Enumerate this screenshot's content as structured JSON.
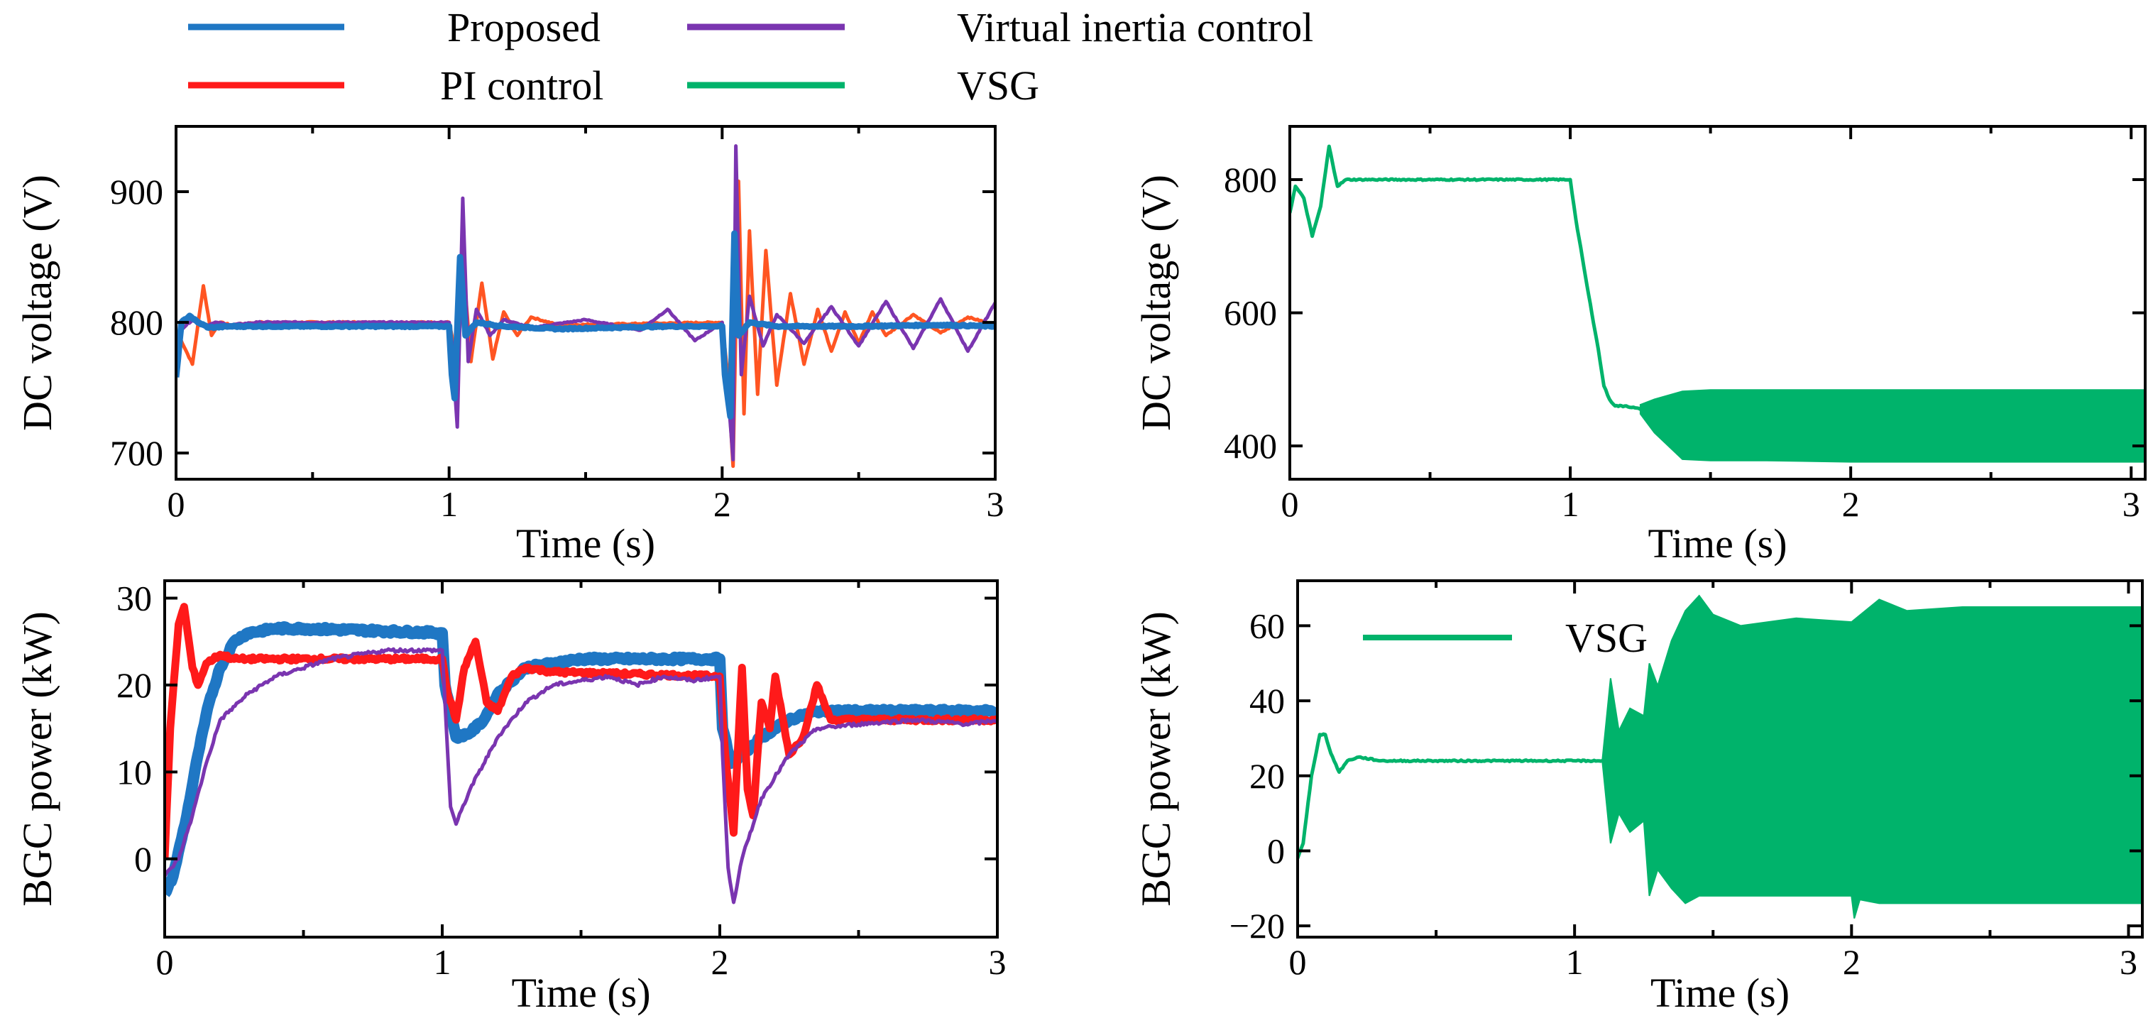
{
  "legend": {
    "entries": [
      {
        "label": "Proposed",
        "color": "#1f77c4"
      },
      {
        "label": "PI control",
        "color": "#ff1a1a"
      },
      {
        "label": "Virtual inertia control",
        "color": "#7a35b0"
      },
      {
        "label": "VSG",
        "color": "#00b36b"
      }
    ]
  },
  "chart_data": [
    {
      "id": "dc-voltage-compare",
      "type": "line",
      "title": "",
      "xlabel": "Time (s)",
      "ylabel": "DC voltage (V)",
      "xlim": [
        0,
        3
      ],
      "ylim": [
        680,
        950
      ],
      "xticks": [
        "0",
        "1",
        "2",
        "3"
      ],
      "xtick_values": [
        0,
        1,
        2,
        3
      ],
      "yticks": [
        "700",
        "800",
        "900"
      ],
      "ytick_values": [
        700,
        800,
        900
      ],
      "series": [
        {
          "name": "PI control",
          "color": "#ff5522",
          "x": [
            0,
            0.01,
            0.06,
            0.1,
            0.13,
            0.16,
            0.2,
            0.3,
            1.0,
            1.01,
            1.03,
            1.05,
            1.08,
            1.12,
            1.16,
            1.2,
            1.25,
            1.3,
            1.4,
            2.0,
            2.02,
            2.04,
            2.06,
            2.08,
            2.1,
            2.13,
            2.16,
            2.2,
            2.25,
            2.3,
            2.35,
            2.4,
            2.45,
            2.5,
            2.55,
            2.6,
            2.7,
            2.8,
            2.9,
            3.0
          ],
          "y": [
            760,
            790,
            768,
            828,
            790,
            800,
            798,
            800,
            800,
            790,
            755,
            848,
            770,
            830,
            772,
            808,
            790,
            804,
            798,
            800,
            760,
            690,
            908,
            730,
            870,
            745,
            855,
            752,
            822,
            768,
            810,
            778,
            808,
            784,
            808,
            790,
            806,
            792,
            804,
            798
          ]
        },
        {
          "name": "Virtual inertia control",
          "color": "#7a35b0",
          "x": [
            0,
            0.02,
            0.06,
            0.1,
            0.15,
            0.2,
            0.3,
            1.0,
            1.01,
            1.03,
            1.05,
            1.07,
            1.1,
            1.15,
            1.2,
            1.3,
            1.5,
            1.7,
            1.8,
            1.9,
            2.0,
            2.02,
            2.04,
            2.05,
            2.07,
            2.1,
            2.15,
            2.2,
            2.3,
            2.4,
            2.5,
            2.6,
            2.7,
            2.8,
            2.9,
            3.0
          ],
          "y": [
            770,
            795,
            802,
            797,
            800,
            798,
            800,
            800,
            785,
            720,
            895,
            770,
            810,
            790,
            802,
            796,
            802,
            794,
            810,
            786,
            800,
            750,
            695,
            935,
            760,
            820,
            782,
            806,
            784,
            812,
            782,
            816,
            780,
            818,
            778,
            815
          ]
        },
        {
          "name": "Proposed",
          "color": "#1f77c4",
          "x": [
            0,
            0.02,
            0.05,
            0.08,
            0.12,
            0.2,
            0.3,
            1.0,
            1.01,
            1.02,
            1.04,
            1.06,
            1.1,
            1.2,
            1.4,
            1.8,
            2.0,
            2.01,
            2.03,
            2.045,
            2.06,
            2.1,
            2.2,
            2.5,
            2.8,
            3.0
          ],
          "y": [
            758,
            800,
            805,
            800,
            796,
            797,
            797,
            797,
            760,
            742,
            850,
            790,
            800,
            797,
            795,
            797,
            797,
            760,
            728,
            868,
            790,
            800,
            797,
            797,
            798,
            797
          ]
        }
      ]
    },
    {
      "id": "dc-voltage-vsg",
      "type": "line",
      "title": "",
      "xlabel": "Time (s)",
      "ylabel": "DC voltage (V)",
      "xlim": [
        0,
        3.05
      ],
      "ylim": [
        350,
        880
      ],
      "xticks": [
        "0",
        "1",
        "2",
        "3"
      ],
      "xtick_values": [
        0,
        1,
        2,
        3
      ],
      "yticks": [
        "400",
        "600",
        "800"
      ],
      "ytick_values": [
        400,
        600,
        800
      ],
      "series": [
        {
          "name": "VSG",
          "color": "#00b36b",
          "x": [
            0,
            0.02,
            0.05,
            0.08,
            0.11,
            0.14,
            0.17,
            0.2,
            0.3,
            1.0,
            1.02,
            1.06,
            1.1,
            1.12,
            1.14,
            1.16,
            1.2,
            1.25
          ],
          "y": [
            750,
            790,
            772,
            715,
            760,
            850,
            790,
            800,
            800,
            800,
            740,
            640,
            545,
            490,
            470,
            460,
            460,
            455
          ]
        },
        {
          "name": "VSG band upper",
          "color": "#00b36b",
          "x": [
            1.25,
            1.3,
            1.4,
            1.5,
            1.7,
            2.0,
            2.5,
            3.05
          ],
          "y": [
            462,
            470,
            482,
            484,
            484,
            484,
            484,
            484
          ]
        },
        {
          "name": "VSG band lower",
          "color": "#00b36b",
          "x": [
            1.25,
            1.3,
            1.4,
            1.5,
            1.7,
            2.0,
            2.5,
            3.05
          ],
          "y": [
            448,
            420,
            380,
            378,
            378,
            376,
            376,
            376
          ]
        }
      ]
    },
    {
      "id": "bgc-power-compare",
      "type": "line",
      "title": "",
      "xlabel": "Time (s)",
      "ylabel": "BGC power (kW)",
      "xlim": [
        0,
        3
      ],
      "ylim": [
        -9,
        32
      ],
      "xticks": [
        "0",
        "1",
        "2",
        "3"
      ],
      "xtick_values": [
        0,
        1,
        2,
        3
      ],
      "yticks": [
        "0",
        "10",
        "20",
        "30"
      ],
      "ytick_values": [
        0,
        10,
        20,
        30
      ],
      "series": [
        {
          "name": "Proposed",
          "color": "#1f77c4",
          "x": [
            0,
            0.03,
            0.08,
            0.12,
            0.16,
            0.2,
            0.25,
            0.3,
            0.4,
            0.5,
            1.0,
            1.01,
            1.05,
            1.1,
            1.15,
            1.2,
            1.3,
            1.5,
            2.0,
            2.01,
            2.04,
            2.08,
            2.15,
            2.25,
            2.35,
            2.5,
            3.0
          ],
          "y": [
            -4,
            -2,
            5,
            12,
            18,
            22,
            25,
            26,
            26.5,
            26.5,
            26,
            20,
            14,
            14.5,
            16,
            19,
            22,
            23,
            23,
            15,
            11,
            12,
            14,
            16,
            17,
            17,
            17
          ]
        },
        {
          "name": "PI control",
          "color": "#ff1a1a",
          "x": [
            0,
            0.02,
            0.05,
            0.07,
            0.1,
            0.12,
            0.15,
            0.2,
            0.25,
            0.3,
            1.0,
            1.02,
            1.05,
            1.08,
            1.12,
            1.16,
            1.2,
            1.25,
            1.3,
            1.4,
            2.0,
            2.02,
            2.05,
            2.08,
            2.1,
            2.12,
            2.15,
            2.18,
            2.2,
            2.25,
            2.3,
            2.35,
            2.4,
            3.0
          ],
          "y": [
            0,
            15,
            27,
            29,
            22,
            20,
            22.5,
            23.5,
            23,
            23,
            23,
            19,
            16,
            22,
            25,
            18,
            17,
            21,
            22,
            21.5,
            21,
            12,
            3,
            22,
            8,
            5,
            18,
            15,
            21,
            12,
            14,
            20,
            16,
            16
          ]
        },
        {
          "name": "Virtual inertia control",
          "color": "#7a35b0",
          "x": [
            0,
            0.05,
            0.1,
            0.15,
            0.2,
            0.3,
            0.4,
            0.6,
            0.8,
            1.0,
            1.01,
            1.03,
            1.05,
            1.1,
            1.2,
            1.3,
            1.4,
            1.5,
            1.6,
            1.7,
            1.8,
            1.9,
            2.0,
            2.01,
            2.03,
            2.05,
            2.08,
            2.15,
            2.25,
            2.35,
            2.5,
            2.7,
            2.9,
            3.0
          ],
          "y": [
            -2,
            0,
            5,
            11,
            16,
            19,
            21,
            23,
            24,
            24,
            18,
            6,
            4,
            8,
            14,
            18,
            20,
            20.5,
            21,
            20,
            21,
            20.5,
            21,
            12,
            -1,
            -5,
            0,
            7,
            12,
            15,
            15.5,
            16,
            15.5,
            16
          ]
        }
      ]
    },
    {
      "id": "bgc-power-vsg",
      "type": "line",
      "title": "",
      "xlabel": "Time (s)",
      "ylabel": "BGC power (kW)",
      "xlim": [
        0,
        3.05
      ],
      "ylim": [
        -23,
        72
      ],
      "xticks": [
        "0",
        "1",
        "2",
        "3"
      ],
      "xtick_values": [
        0,
        1,
        2,
        3
      ],
      "yticks": [
        "−20",
        "0",
        "20",
        "40",
        "60"
      ],
      "ytick_values": [
        -20,
        0,
        20,
        40,
        60
      ],
      "legend": {
        "label": "VSG",
        "placement": "top-left"
      },
      "series": [
        {
          "name": "VSG",
          "color": "#00b36b",
          "x": [
            0,
            0.02,
            0.05,
            0.08,
            0.1,
            0.12,
            0.15,
            0.18,
            0.22,
            0.3,
            0.5,
            1.0,
            1.1
          ],
          "y": [
            -2,
            2,
            20,
            31,
            31,
            26,
            21,
            24,
            25,
            24,
            24,
            24,
            24
          ]
        },
        {
          "name": "VSG band upper",
          "color": "#00b36b",
          "x": [
            1.1,
            1.13,
            1.16,
            1.2,
            1.25,
            1.27,
            1.3,
            1.35,
            1.4,
            1.45,
            1.5,
            1.6,
            1.8,
            2.0,
            2.05,
            2.1,
            2.2,
            2.4,
            2.6,
            3.05
          ],
          "y": [
            24,
            46,
            32,
            38,
            36,
            50,
            44,
            56,
            64,
            68,
            63,
            60,
            62,
            61,
            64,
            67,
            64,
            65,
            65,
            65
          ]
        },
        {
          "name": "VSG band lower",
          "color": "#00b36b",
          "x": [
            1.1,
            1.13,
            1.16,
            1.2,
            1.25,
            1.27,
            1.3,
            1.35,
            1.4,
            1.45,
            1.5,
            1.6,
            1.8,
            2.0,
            2.01,
            2.03,
            2.1,
            2.4,
            3.05
          ],
          "y": [
            24,
            2,
            10,
            5,
            8,
            -12,
            -5,
            -10,
            -14,
            -12,
            -12,
            -12,
            -12,
            -12,
            -18,
            -13,
            -14,
            -14,
            -14
          ]
        }
      ]
    }
  ]
}
